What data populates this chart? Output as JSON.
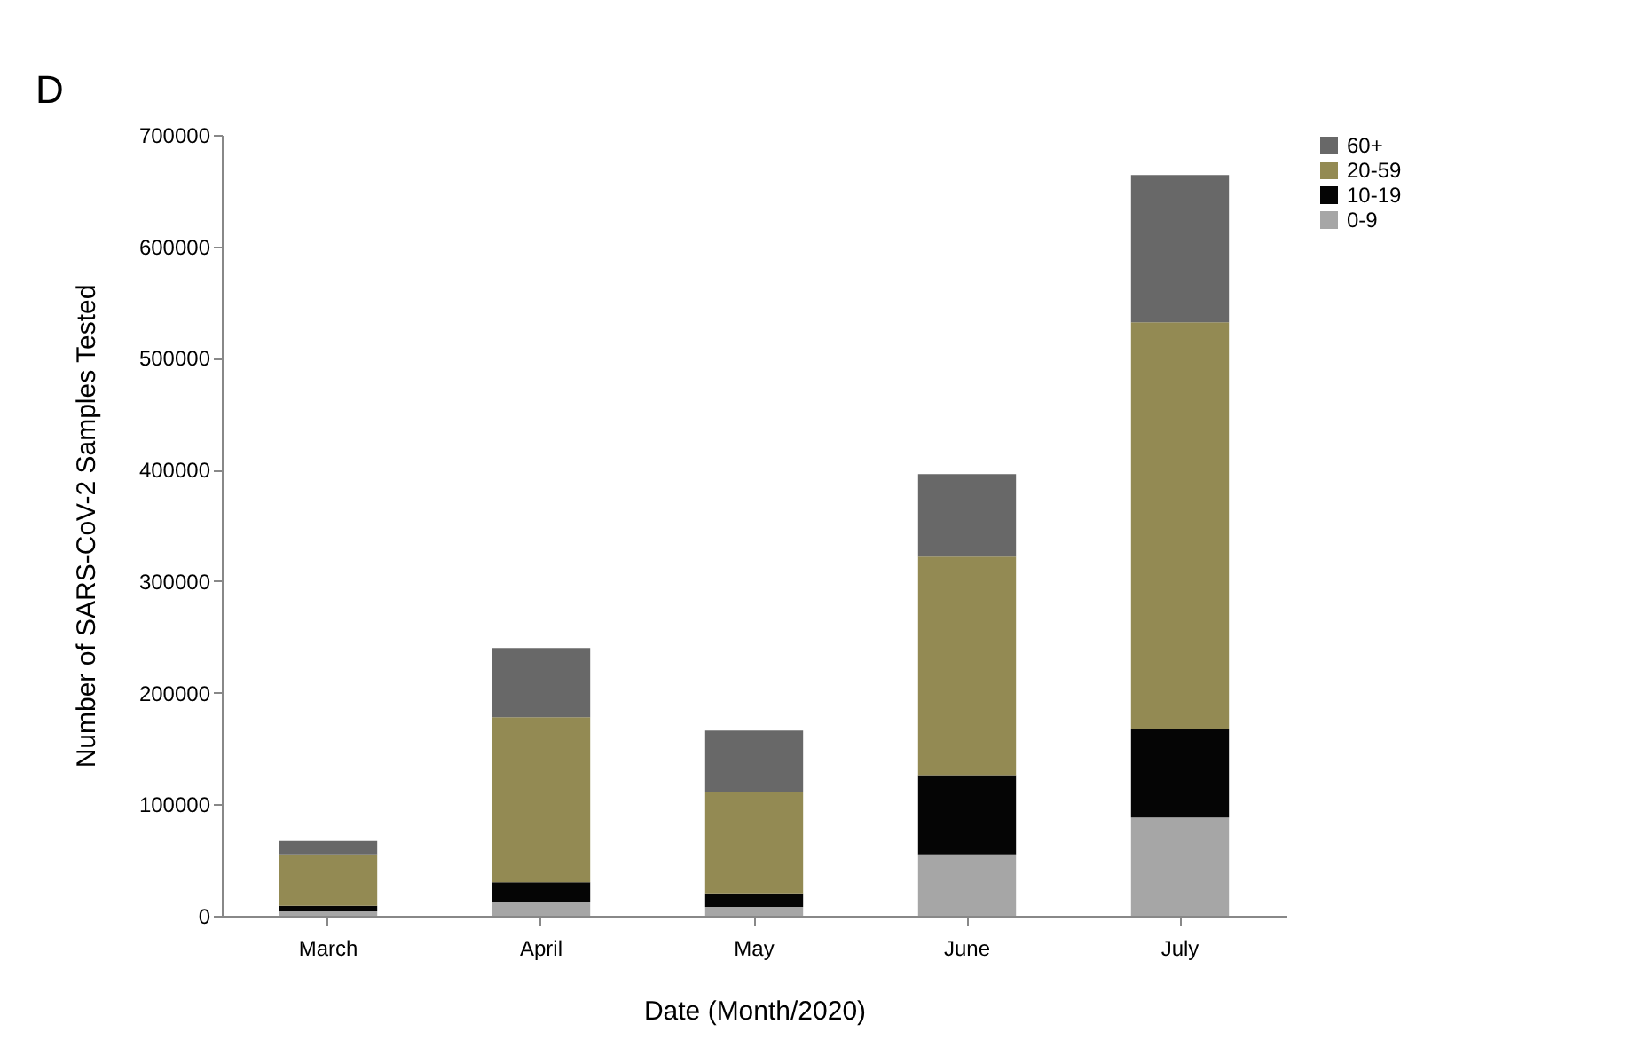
{
  "chart_data": {
    "type": "bar",
    "stacked": true,
    "xlabel": "Date (Month/2020)",
    "ylabel": "Number of SARS-CoV-2 Samples Tested",
    "annotations": [
      "D"
    ],
    "categories": [
      "March",
      "April",
      "May",
      "June",
      "July"
    ],
    "series": [
      {
        "name": "0-9",
        "color": "#a6a6a6",
        "values": [
          4000,
          12000,
          8000,
          55000,
          88000
        ]
      },
      {
        "name": "10-19",
        "color": "#050505",
        "values": [
          5000,
          18000,
          12000,
          71000,
          79000
        ]
      },
      {
        "name": "20-59",
        "color": "#938a53",
        "values": [
          46000,
          148000,
          91000,
          196000,
          365000
        ]
      },
      {
        "name": "60+",
        "color": "#686868",
        "values": [
          12000,
          62000,
          55000,
          74000,
          132000
        ]
      }
    ],
    "ylim": [
      0,
      700000
    ],
    "yticks": [
      0,
      100000,
      200000,
      300000,
      400000,
      500000,
      600000,
      700000
    ],
    "grid": false,
    "legend": "top right"
  }
}
